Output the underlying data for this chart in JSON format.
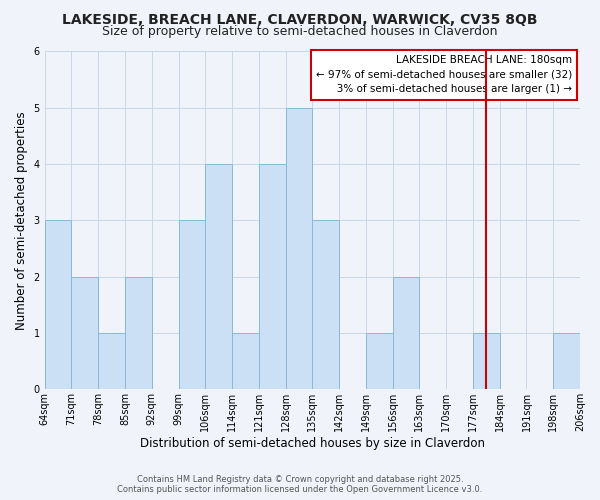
{
  "title": "LAKESIDE, BREACH LANE, CLAVERDON, WARWICK, CV35 8QB",
  "subtitle": "Size of property relative to semi-detached houses in Claverdon",
  "xlabel": "Distribution of semi-detached houses by size in Claverdon",
  "ylabel": "Number of semi-detached properties",
  "bin_labels": [
    "64sqm",
    "71sqm",
    "78sqm",
    "85sqm",
    "92sqm",
    "99sqm",
    "106sqm",
    "114sqm",
    "121sqm",
    "128sqm",
    "135sqm",
    "142sqm",
    "149sqm",
    "156sqm",
    "163sqm",
    "170sqm",
    "177sqm",
    "184sqm",
    "191sqm",
    "198sqm",
    "206sqm"
  ],
  "counts": [
    3,
    2,
    1,
    2,
    0,
    3,
    4,
    1,
    4,
    5,
    3,
    0,
    1,
    2,
    0,
    0,
    1,
    0,
    0,
    1
  ],
  "bar_color": "#cce0f5",
  "bar_edge_color": "#8ab8d8",
  "property_size_idx": 16.5,
  "vline_color": "#cc0000",
  "annotation_title": "LAKESIDE BREACH LANE: 180sqm",
  "annotation_line1": "← 97% of semi-detached houses are smaller (32)",
  "annotation_line2": "   3% of semi-detached houses are larger (1) →",
  "annotation_box_color": "#ffffff",
  "annotation_box_edge_color": "#cc0000",
  "ylim": [
    0,
    6
  ],
  "yticks": [
    0,
    1,
    2,
    3,
    4,
    5,
    6
  ],
  "footer_line1": "Contains HM Land Registry data © Crown copyright and database right 2025.",
  "footer_line2": "Contains public sector information licensed under the Open Government Licence v3.0.",
  "background_color": "#f0f4fa",
  "plot_bg_color": "#f0f4fa",
  "grid_color": "#c8d8e8",
  "title_fontsize": 10,
  "subtitle_fontsize": 9,
  "axis_label_fontsize": 8.5,
  "tick_fontsize": 7,
  "annotation_fontsize": 7.5,
  "footer_fontsize": 6
}
